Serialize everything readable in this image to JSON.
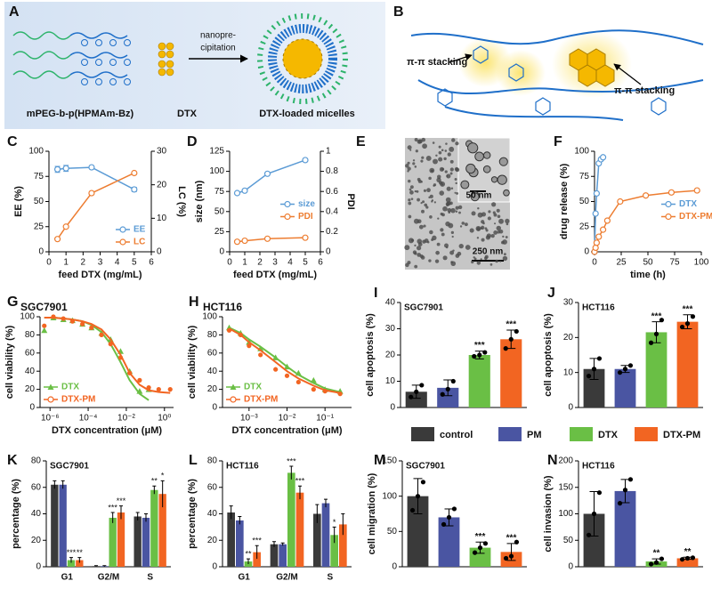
{
  "diagrams": [
    {
      "panel": "A",
      "labels": [
        "mPEG-b-p(HPMAm-Bz)",
        "DTX",
        "nanopre-",
        "cipitation",
        "DTX-loaded micelles"
      ]
    },
    {
      "panel": "B",
      "labels": [
        "π-π stacking",
        "π-π stacking"
      ]
    },
    {
      "panel": "E",
      "labels": [
        "50 nm",
        "250 nm"
      ]
    }
  ],
  "group_legend": {
    "names": [
      "control",
      "PM",
      "DTX",
      "DTX-PM"
    ],
    "colors": [
      "#3a3a3a",
      "#4a55a2",
      "#6abf45",
      "#f26522"
    ]
  },
  "chart_data": [
    {
      "panel": "C",
      "type": "line",
      "x": [
        0.5,
        1,
        2.5,
        5
      ],
      "xlim": [
        0,
        6
      ],
      "xticks": [
        0,
        1,
        2,
        3,
        4,
        5,
        6
      ],
      "ylim": [
        0,
        100
      ],
      "yticks": [
        0,
        25,
        50,
        75,
        100
      ],
      "y2lim": [
        0,
        30
      ],
      "y2ticks": [
        0,
        10,
        20,
        30
      ],
      "xlabel": "feed DTX (mg/mL)",
      "ylabel": "EE (%)",
      "y2label": "LC (%)",
      "legend": "lower right",
      "series": [
        {
          "name": "EE",
          "color": "#5b9bd5",
          "values": [
            82,
            83,
            84,
            62
          ],
          "errors": [
            3,
            3,
            1,
            2
          ]
        },
        {
          "name": "LC",
          "color": "#ed7d31",
          "axis": "y2",
          "values": [
            3.8,
            7.5,
            17.5,
            23.5
          ]
        }
      ]
    },
    {
      "panel": "D",
      "type": "line",
      "x": [
        0.5,
        1,
        2.5,
        5
      ],
      "xlim": [
        0,
        6
      ],
      "xticks": [
        0,
        1,
        2,
        3,
        4,
        5,
        6
      ],
      "ylim": [
        0,
        125
      ],
      "yticks": [
        0,
        25,
        50,
        75,
        100,
        125
      ],
      "y2lim": [
        0,
        1
      ],
      "y2ticks": [
        0,
        0.2,
        0.4,
        0.6,
        0.8,
        1
      ],
      "xlabel": "feed DTX (mg/mL)",
      "ylabel": "size (nm)",
      "y2label": "PDI",
      "legend": "right",
      "series": [
        {
          "name": "size",
          "color": "#5b9bd5",
          "values": [
            73,
            76,
            97,
            114
          ]
        },
        {
          "name": "PDI",
          "color": "#ed7d31",
          "axis": "y2",
          "values": [
            0.1,
            0.11,
            0.13,
            0.14
          ]
        }
      ]
    },
    {
      "panel": "F",
      "type": "line",
      "xlim": [
        0,
        100
      ],
      "xticks": [
        0,
        25,
        50,
        75,
        100
      ],
      "ylim": [
        0,
        100
      ],
      "yticks": [
        0,
        25,
        50,
        75,
        100
      ],
      "xlabel": "time (h)",
      "ylabel": "drug release (%)",
      "legend": "right",
      "series": [
        {
          "name": "DTX",
          "color": "#5b9bd5",
          "x": [
            0,
            1,
            2,
            4,
            6,
            8
          ],
          "values": [
            0,
            38,
            58,
            88,
            92,
            94
          ]
        },
        {
          "name": "DTX-PM",
          "color": "#ed7d31",
          "x": [
            0,
            1,
            2,
            4,
            8,
            12,
            24,
            48,
            72,
            96
          ],
          "values": [
            0,
            4,
            9,
            15,
            22,
            31,
            50,
            56,
            59,
            61
          ]
        }
      ]
    },
    {
      "panel": "G",
      "type": "scatter",
      "subtitle": "SGC7901",
      "xscale": "log",
      "x": [
        5e-07,
        1.5e-06,
        5e-06,
        1.5e-05,
        5e-05,
        0.00015,
        0.0005,
        0.0015,
        0.005,
        0.015,
        0.05,
        0.15,
        0.5,
        2
      ],
      "xlim": [
        3e-07,
        3
      ],
      "xticks": [
        {
          "value": 1e-06,
          "label": "10⁻⁶"
        },
        {
          "value": 0.0001,
          "label": "10⁻⁴"
        },
        {
          "value": 0.01,
          "label": "10⁻²"
        },
        {
          "value": 1,
          "label": "10⁰"
        }
      ],
      "ylim": [
        0,
        100
      ],
      "yticks": [
        0,
        20,
        40,
        60,
        80,
        100
      ],
      "xlabel": "DTX concentration (μM)",
      "ylabel": "cell viability (%)",
      "legend": "lower left",
      "series": [
        {
          "name": "DTX",
          "color": "#6abf45",
          "marker": "triangle",
          "values": [
            85,
            99,
            97,
            96,
            92,
            88,
            82,
            75,
            62,
            40,
            18,
            20,
            null,
            null
          ],
          "fit": [
            99,
            99,
            98,
            97,
            95,
            91,
            83,
            70,
            50,
            30,
            15,
            8,
            null,
            null
          ]
        },
        {
          "name": "DTX-PM",
          "color": "#f26522",
          "marker": "circle",
          "values": [
            90,
            100,
            98,
            95,
            92,
            88,
            80,
            70,
            55,
            38,
            30,
            22,
            20,
            20
          ],
          "fit": [
            99,
            99,
            98,
            97,
            95,
            92,
            86,
            75,
            58,
            38,
            25,
            19,
            17,
            16
          ]
        }
      ]
    },
    {
      "panel": "H",
      "type": "scatter",
      "subtitle": "HCT116",
      "xscale": "log",
      "x": [
        0.0003,
        0.0006,
        0.001,
        0.002,
        0.005,
        0.01,
        0.02,
        0.05,
        0.1,
        0.25
      ],
      "xlim": [
        0.0002,
        0.5
      ],
      "xticks": [
        {
          "value": 0.001,
          "label": "10⁻³"
        },
        {
          "value": 0.01,
          "label": "10⁻²"
        },
        {
          "value": 0.1,
          "label": "10⁻¹"
        }
      ],
      "ylim": [
        0,
        100
      ],
      "yticks": [
        0,
        20,
        40,
        60,
        80,
        100
      ],
      "xlabel": "DTX concentration (μM)",
      "ylabel": "cell viability (%)",
      "legend": "lower left",
      "series": [
        {
          "name": "DTX",
          "color": "#6abf45",
          "marker": "triangle",
          "values": [
            88,
            82,
            72,
            65,
            55,
            45,
            38,
            30,
            20,
            18
          ],
          "fit": [
            88,
            82,
            75,
            67,
            55,
            45,
            36,
            27,
            21,
            17
          ]
        },
        {
          "name": "DTX-PM",
          "color": "#f26522",
          "marker": "circle",
          "values": [
            85,
            80,
            68,
            58,
            42,
            35,
            28,
            20,
            18,
            15
          ],
          "fit": [
            87,
            80,
            72,
            63,
            50,
            40,
            32,
            24,
            19,
            16
          ]
        }
      ]
    },
    {
      "panel": "I",
      "type": "bar",
      "subtitle": "SGC7901",
      "ylabel": "cell apoptosis (%)",
      "ylim": [
        0,
        40
      ],
      "yticks": [
        0,
        10,
        20,
        30,
        40
      ],
      "values": [
        6,
        7.5,
        20,
        26
      ],
      "errors": [
        2.5,
        3,
        1.5,
        3.5
      ],
      "points": [
        [
          4,
          6,
          8.5
        ],
        [
          5,
          7,
          10
        ],
        [
          19.5,
          20,
          21
        ],
        [
          22.5,
          26,
          29
        ]
      ],
      "significance": [
        null,
        null,
        "***",
        "***"
      ]
    },
    {
      "panel": "J",
      "type": "bar",
      "subtitle": "HCT116",
      "ylabel": "cell apoptosis (%)",
      "ylim": [
        0,
        30
      ],
      "yticks": [
        0,
        10,
        20,
        30
      ],
      "values": [
        11,
        11,
        21.5,
        24.5
      ],
      "errors": [
        3,
        1,
        3,
        2
      ],
      "points": [
        [
          9,
          11,
          14
        ],
        [
          10,
          11,
          12
        ],
        [
          18.5,
          21,
          25
        ],
        [
          23,
          24,
          26
        ]
      ],
      "significance": [
        null,
        null,
        "***",
        "***"
      ]
    },
    {
      "panel": "K",
      "type": "grouped-bar",
      "subtitle": "SGC7901",
      "ylabel": "percentage (%)",
      "categories": [
        "G1",
        "G2/M",
        "S"
      ],
      "ylim": [
        0,
        80
      ],
      "yticks": [
        0,
        20,
        40,
        60,
        80
      ],
      "series": [
        {
          "values": [
            62,
            0.5,
            38
          ],
          "errors": [
            3,
            0.3,
            3
          ]
        },
        {
          "values": [
            62,
            0.5,
            37
          ],
          "errors": [
            3,
            0.3,
            3
          ]
        },
        {
          "values": [
            5,
            37,
            58
          ],
          "errors": [
            2,
            4,
            3
          ],
          "significance": [
            "***",
            "***",
            "**"
          ]
        },
        {
          "values": [
            5,
            41,
            55
          ],
          "errors": [
            2,
            5,
            10
          ],
          "significance": [
            "**",
            "***",
            "*"
          ]
        }
      ]
    },
    {
      "panel": "L",
      "type": "grouped-bar",
      "subtitle": "HCT116",
      "ylabel": "percentage (%)",
      "categories": [
        "G1",
        "G2/M",
        "S"
      ],
      "ylim": [
        0,
        80
      ],
      "yticks": [
        0,
        20,
        40,
        60,
        80
      ],
      "series": [
        {
          "values": [
            41,
            17,
            40
          ],
          "errors": [
            5,
            2,
            7
          ]
        },
        {
          "values": [
            35,
            17,
            48
          ],
          "errors": [
            3,
            1,
            3
          ]
        },
        {
          "values": [
            4,
            71,
            24
          ],
          "errors": [
            2,
            5,
            6
          ],
          "significance": [
            "**",
            "***",
            "*"
          ]
        },
        {
          "values": [
            11,
            56,
            32
          ],
          "errors": [
            5,
            5,
            8
          ],
          "significance": [
            "***",
            "***",
            null
          ]
        }
      ]
    },
    {
      "panel": "M",
      "type": "bar",
      "subtitle": "SGC7901",
      "ylabel": "cell migration (%)",
      "ylim": [
        0,
        150
      ],
      "yticks": [
        0,
        50,
        100,
        150
      ],
      "values": [
        100,
        70,
        27,
        21
      ],
      "errors": [
        25,
        12,
        8,
        12
      ],
      "points": [
        [
          80,
          100,
          120
        ],
        [
          60,
          70,
          82
        ],
        [
          20,
          27,
          33
        ],
        [
          12,
          15,
          35
        ]
      ],
      "significance": [
        null,
        null,
        "***",
        "***"
      ]
    },
    {
      "panel": "N",
      "type": "bar",
      "subtitle": "HCT116",
      "ylabel": "cell invasion (%)",
      "ylim": [
        0,
        200
      ],
      "yticks": [
        0,
        50,
        100,
        150,
        200
      ],
      "values": [
        100,
        143,
        10,
        16
      ],
      "errors": [
        42,
        22,
        5,
        2
      ],
      "points": [
        [
          60,
          100,
          140
        ],
        [
          120,
          145,
          165
        ],
        [
          5,
          8,
          15
        ],
        [
          14,
          16,
          17
        ]
      ],
      "significance": [
        null,
        null,
        "**",
        "**"
      ]
    }
  ]
}
